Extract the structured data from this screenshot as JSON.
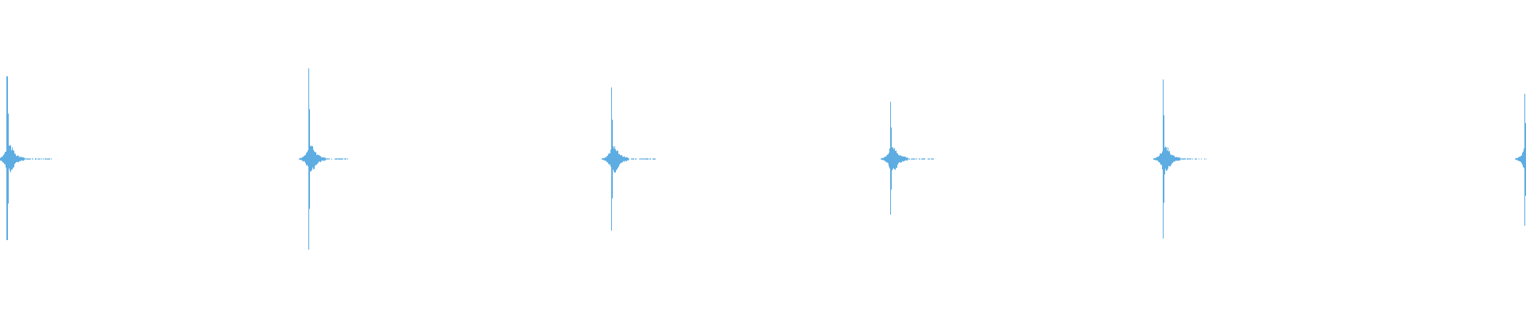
{
  "chart_data": {
    "type": "area",
    "title": "",
    "xlabel": "",
    "ylabel": "",
    "ylim": [
      -1,
      1
    ],
    "grid": false,
    "axes_visible": false,
    "color": "#5dade2",
    "background": "#ffffff",
    "bursts": [
      {
        "peak_pos": 0.52,
        "peak_neg": 0.51
      },
      {
        "peak_pos": 0.57,
        "peak_neg": 0.57
      },
      {
        "peak_pos": 0.45,
        "peak_neg": 0.45
      },
      {
        "peak_pos": 0.36,
        "peak_neg": 0.35
      },
      {
        "peak_pos": 0.5,
        "peak_neg": 0.5
      },
      {
        "peak_pos": 0.41,
        "peak_neg": 0.42
      }
    ]
  }
}
